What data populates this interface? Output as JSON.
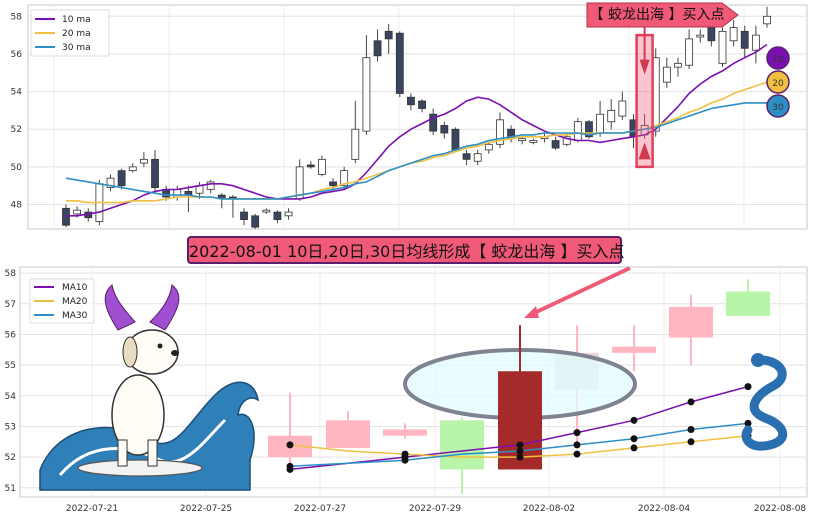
{
  "top_label": "【 蛟龙出海 】买入点",
  "banner_text": "2022-08-01 10日,20日,30日均线形成【 蛟龙出海 】买入点",
  "badges": [
    "10",
    "20",
    "30"
  ],
  "colors": {
    "ma10": "#7b10b0",
    "ma20": "#f0c040",
    "ma30": "#2d8fc4",
    "up": "#ffffff",
    "down": "#3a4660",
    "accent": "#f05a78"
  },
  "chart_data": [
    {
      "type": "candlestick",
      "legend": [
        "10 ma",
        "20 ma",
        "30 ma"
      ],
      "ylim": [
        46.7,
        58.6
      ],
      "yticks": [
        48,
        50,
        52,
        54,
        56,
        58
      ],
      "candles": [
        {
          "o": 47.8,
          "c": 46.9,
          "h": 48.0,
          "l": 46.8
        },
        {
          "o": 47.5,
          "c": 47.7,
          "h": 47.9,
          "l": 47.3
        },
        {
          "o": 47.6,
          "c": 47.3,
          "h": 47.8,
          "l": 47.1
        },
        {
          "o": 47.1,
          "c": 49.1,
          "h": 49.3,
          "l": 46.9
        },
        {
          "o": 48.9,
          "c": 49.4,
          "h": 49.6,
          "l": 48.7
        },
        {
          "o": 49.8,
          "c": 49.0,
          "h": 49.9,
          "l": 48.8
        },
        {
          "o": 49.8,
          "c": 50.0,
          "h": 50.2,
          "l": 49.7
        },
        {
          "o": 50.2,
          "c": 50.4,
          "h": 50.8,
          "l": 50.0
        },
        {
          "o": 50.4,
          "c": 48.9,
          "h": 50.9,
          "l": 48.7
        },
        {
          "o": 48.8,
          "c": 48.4,
          "h": 49.0,
          "l": 48.2
        },
        {
          "o": 48.4,
          "c": 48.8,
          "h": 49.0,
          "l": 48.2
        },
        {
          "o": 48.7,
          "c": 48.5,
          "h": 49.0,
          "l": 47.6
        },
        {
          "o": 48.6,
          "c": 49.0,
          "h": 49.2,
          "l": 48.3
        },
        {
          "o": 48.8,
          "c": 49.2,
          "h": 49.3,
          "l": 48.6
        },
        {
          "o": 48.5,
          "c": 48.3,
          "h": 48.6,
          "l": 47.8
        },
        {
          "o": 48.4,
          "c": 48.3,
          "h": 48.5,
          "l": 47.3
        },
        {
          "o": 47.6,
          "c": 47.2,
          "h": 47.8,
          "l": 46.9
        },
        {
          "o": 47.4,
          "c": 46.8,
          "h": 47.5,
          "l": 46.7
        },
        {
          "o": 47.6,
          "c": 47.7,
          "h": 47.8,
          "l": 47.5
        },
        {
          "o": 47.6,
          "c": 47.2,
          "h": 47.7,
          "l": 47.0
        },
        {
          "o": 47.4,
          "c": 47.6,
          "h": 47.8,
          "l": 47.2
        },
        {
          "o": 48.3,
          "c": 50.0,
          "h": 50.4,
          "l": 48.2
        },
        {
          "o": 50.1,
          "c": 50.0,
          "h": 50.3,
          "l": 49.9
        },
        {
          "o": 49.6,
          "c": 50.4,
          "h": 50.6,
          "l": 49.5
        },
        {
          "o": 49.2,
          "c": 49.0,
          "h": 49.4,
          "l": 48.7
        },
        {
          "o": 49.0,
          "c": 49.8,
          "h": 50.0,
          "l": 48.8
        },
        {
          "o": 50.4,
          "c": 52.0,
          "h": 53.5,
          "l": 50.2
        },
        {
          "o": 51.9,
          "c": 55.8,
          "h": 57.0,
          "l": 51.7
        },
        {
          "o": 56.7,
          "c": 55.9,
          "h": 57.3,
          "l": 55.6
        },
        {
          "o": 57.2,
          "c": 56.8,
          "h": 57.6,
          "l": 56.0
        },
        {
          "o": 57.1,
          "c": 53.9,
          "h": 57.2,
          "l": 53.7
        },
        {
          "o": 53.7,
          "c": 53.3,
          "h": 53.9,
          "l": 53.0
        },
        {
          "o": 53.5,
          "c": 53.1,
          "h": 53.6,
          "l": 52.9
        },
        {
          "o": 52.8,
          "c": 51.9,
          "h": 53.1,
          "l": 51.7
        },
        {
          "o": 52.2,
          "c": 51.8,
          "h": 52.4,
          "l": 51.5
        },
        {
          "o": 52.0,
          "c": 50.9,
          "h": 52.1,
          "l": 50.8
        },
        {
          "o": 50.7,
          "c": 50.4,
          "h": 50.9,
          "l": 50.1
        },
        {
          "o": 50.3,
          "c": 50.7,
          "h": 50.9,
          "l": 50.1
        },
        {
          "o": 50.9,
          "c": 51.2,
          "h": 51.3,
          "l": 50.7
        },
        {
          "o": 51.2,
          "c": 52.5,
          "h": 52.9,
          "l": 51.0
        },
        {
          "o": 52.0,
          "c": 51.5,
          "h": 52.2,
          "l": 51.3
        },
        {
          "o": 51.4,
          "c": 51.5,
          "h": 51.6,
          "l": 51.2
        },
        {
          "o": 51.3,
          "c": 51.4,
          "h": 51.5,
          "l": 51.2
        },
        {
          "o": 51.5,
          "c": 51.6,
          "h": 51.8,
          "l": 51.3
        },
        {
          "o": 51.4,
          "c": 51.0,
          "h": 51.6,
          "l": 50.9
        },
        {
          "o": 51.2,
          "c": 51.6,
          "h": 51.8,
          "l": 51.1
        },
        {
          "o": 51.4,
          "c": 52.4,
          "h": 52.6,
          "l": 51.3
        },
        {
          "o": 52.4,
          "c": 51.6,
          "h": 52.5,
          "l": 51.5
        },
        {
          "o": 51.8,
          "c": 52.8,
          "h": 53.5,
          "l": 51.6
        },
        {
          "o": 52.4,
          "c": 53.0,
          "h": 53.6,
          "l": 52.0
        },
        {
          "o": 52.7,
          "c": 53.5,
          "h": 54.0,
          "l": 52.5
        },
        {
          "o": 52.5,
          "c": 51.6,
          "h": 52.8,
          "l": 51.0
        },
        {
          "o": 51.7,
          "c": 52.2,
          "h": 52.8,
          "l": 51.5
        },
        {
          "o": 51.9,
          "c": 55.8,
          "h": 56.3,
          "l": 51.6
        },
        {
          "o": 54.5,
          "c": 55.3,
          "h": 55.8,
          "l": 54.2
        },
        {
          "o": 55.3,
          "c": 55.5,
          "h": 55.8,
          "l": 54.8
        },
        {
          "o": 55.4,
          "c": 56.8,
          "h": 57.3,
          "l": 55.2
        },
        {
          "o": 56.9,
          "c": 57.0,
          "h": 57.3,
          "l": 56.6
        },
        {
          "o": 57.5,
          "c": 56.7,
          "h": 57.8,
          "l": 56.4
        },
        {
          "o": 55.5,
          "c": 57.2,
          "h": 57.4,
          "l": 55.3
        },
        {
          "o": 56.7,
          "c": 57.4,
          "h": 57.8,
          "l": 56.4
        },
        {
          "o": 57.2,
          "c": 56.3,
          "h": 57.5,
          "l": 55.8
        },
        {
          "o": 56.2,
          "c": 57.0,
          "h": 57.5,
          "l": 55.5
        },
        {
          "o": 57.6,
          "c": 58.0,
          "h": 58.5,
          "l": 57.4
        }
      ],
      "ma10": [
        47.4,
        47.4,
        47.5,
        47.6,
        47.8,
        48.0,
        48.2,
        48.5,
        48.7,
        48.8,
        48.8,
        48.9,
        49.0,
        49.1,
        49.1,
        49.0,
        48.8,
        48.6,
        48.4,
        48.3,
        48.3,
        48.3,
        48.4,
        48.6,
        48.7,
        48.8,
        49.1,
        49.7,
        50.4,
        51.1,
        51.6,
        52.0,
        52.3,
        52.6,
        52.8,
        53.1,
        53.5,
        53.7,
        53.6,
        53.3,
        52.9,
        52.5,
        52.2,
        51.9,
        51.7,
        51.5,
        51.4,
        51.4,
        51.3,
        51.4,
        51.5,
        51.6,
        51.7,
        52.0,
        52.6,
        53.2,
        53.9,
        54.4,
        54.8,
        55.1,
        55.5,
        55.8,
        56.1,
        56.5
      ],
      "ma20": [
        48.2,
        48.2,
        48.1,
        48.1,
        48.1,
        48.1,
        48.2,
        48.2,
        48.2,
        48.3,
        48.4,
        48.4,
        48.4,
        48.4,
        48.3,
        48.3,
        48.3,
        48.3,
        48.3,
        48.3,
        48.4,
        48.5,
        48.6,
        48.8,
        48.9,
        49.1,
        49.2,
        49.4,
        49.6,
        49.8,
        50.0,
        50.2,
        50.3,
        50.5,
        50.6,
        50.8,
        51.0,
        51.1,
        51.3,
        51.4,
        51.5,
        51.6,
        51.6,
        51.6,
        51.7,
        51.7,
        51.8,
        51.8,
        51.8,
        51.8,
        51.8,
        51.9,
        52.0,
        52.2,
        52.4,
        52.6,
        52.9,
        53.1,
        53.4,
        53.6,
        53.9,
        54.1,
        54.3,
        54.5
      ],
      "ma30": [
        49.4,
        49.3,
        49.2,
        49.1,
        49.0,
        48.9,
        48.8,
        48.7,
        48.6,
        48.5,
        48.5,
        48.5,
        48.4,
        48.4,
        48.3,
        48.3,
        48.3,
        48.3,
        48.3,
        48.3,
        48.4,
        48.5,
        48.6,
        48.7,
        48.8,
        48.9,
        49.1,
        49.2,
        49.5,
        49.8,
        50.0,
        50.2,
        50.4,
        50.6,
        50.7,
        50.9,
        51.1,
        51.2,
        51.4,
        51.5,
        51.6,
        51.7,
        51.7,
        51.8,
        51.8,
        51.8,
        51.8,
        51.7,
        51.8,
        51.8,
        51.8,
        51.9,
        52.0,
        52.1,
        52.3,
        52.5,
        52.7,
        52.9,
        53.1,
        53.2,
        53.3,
        53.4,
        53.4,
        53.4
      ]
    },
    {
      "type": "candlestick",
      "legend": [
        "MA10",
        "MA20",
        "MA30"
      ],
      "x": [
        "2022-07-21",
        "2022-07-25",
        "2022-07-27",
        "2022-07-29",
        "2022-08-02",
        "2022-08-04",
        "2022-08-08"
      ],
      "ylim": [
        50.7,
        58.2
      ],
      "yticks": [
        51,
        52,
        53,
        54,
        55,
        56,
        57,
        58
      ],
      "candles": [
        {
          "o": 52.7,
          "c": 52.0,
          "h": 54.1,
          "l": 51.8
        },
        {
          "o": 52.3,
          "c": 53.2,
          "h": 53.5,
          "l": 52.3
        },
        {
          "o": 52.9,
          "c": 52.7,
          "h": 53.1,
          "l": 52.6
        },
        {
          "o": 53.2,
          "c": 51.6,
          "h": 53.3,
          "l": 50.8
        },
        {
          "o": 54.8,
          "c": 51.6,
          "h": 56.3,
          "l": 51.6
        },
        {
          "o": 55.4,
          "c": 54.2,
          "h": 56.3,
          "l": 52.4
        },
        {
          "o": 55.6,
          "c": 55.4,
          "h": 56.3,
          "l": 54.8
        },
        {
          "o": 55.9,
          "c": 56.9,
          "h": 57.3,
          "l": 55.0
        },
        {
          "o": 56.6,
          "c": 57.4,
          "h": 57.8,
          "l": 56.6
        }
      ],
      "ma10": [
        51.6,
        51.8,
        52.0,
        52.2,
        52.4,
        52.8,
        53.2,
        53.8,
        54.3
      ],
      "ma20": [
        52.4,
        52.2,
        52.1,
        52.0,
        52.0,
        52.1,
        52.3,
        52.5,
        52.7
      ],
      "ma30": [
        51.7,
        51.8,
        51.9,
        52.1,
        52.2,
        52.4,
        52.6,
        52.9,
        53.1
      ]
    }
  ]
}
